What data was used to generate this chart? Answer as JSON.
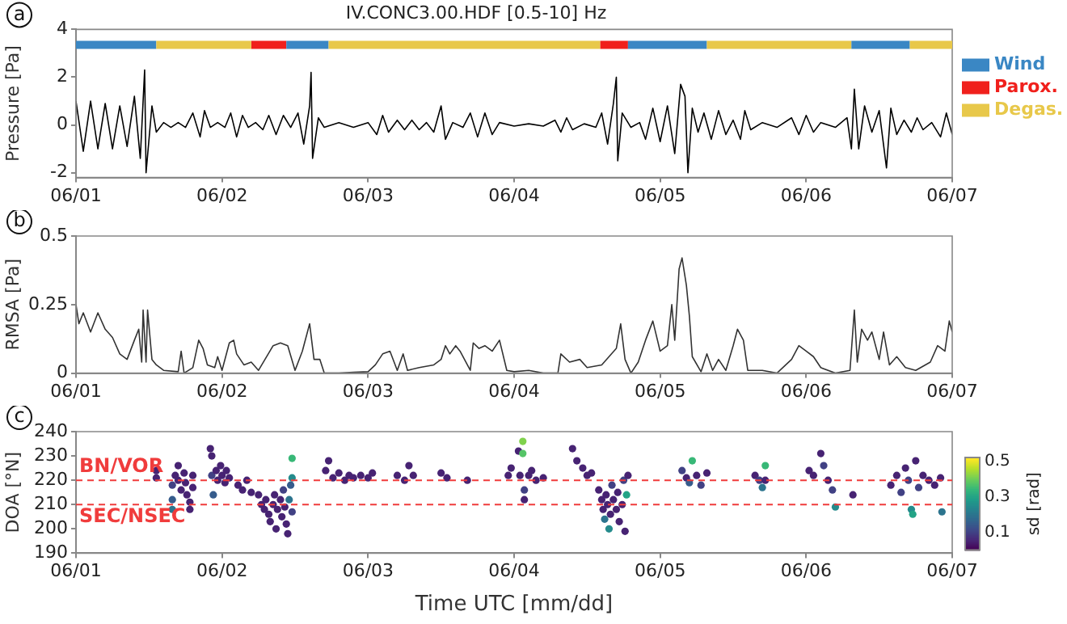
{
  "chart_data": [
    {
      "type": "line",
      "title": "IV.CONC3.00.HDF [0.5-10] Hz",
      "ylabel": "Pressure [Pa]",
      "annotations": [
        "a"
      ],
      "color": "#000000",
      "legend": "right",
      "marker": "none",
      "x": [
        "--06-01T00:00",
        "--06-01T01:12",
        "--06-01T02:24",
        "--06-01T03:36",
        "--06-01T04:48",
        "--06-01T06:00",
        "--06-01T07:12",
        "--06-01T08:24",
        "--06-01T09:36",
        "--06-01T10:34",
        "--06-01T11:17",
        "--06-01T11:31",
        "--06-01T12:29",
        "--06-01T13:12",
        "--06-01T14:24",
        "--06-01T15:36",
        "--06-01T16:48",
        "--06-01T18:00",
        "--06-01T19:12",
        "--06-01T20:24",
        "--06-01T21:07",
        "--06-01T22:05",
        "--06-01T23:17",
        "--06-02T00:29",
        "--06-02T01:26",
        "--06-02T02:24",
        "--06-02T03:22",
        "--06-02T04:19",
        "--06-02T05:31",
        "--06-02T06:43",
        "--06-02T07:41",
        "--06-02T08:53",
        "--06-02T10:05",
        "--06-02T11:17",
        "--06-02T12:29",
        "--06-02T13:26",
        "--06-02T14:24",
        "--06-02T14:38",
        "--06-02T14:53",
        "--06-02T15:50",
        "--06-02T16:48",
        "--06-02T19:12",
        "--06-02T21:36",
        "--06-03T00:00",
        "--06-03T01:26",
        "--06-03T02:24",
        "--06-03T03:22",
        "--06-03T04:48",
        "--06-03T06:00",
        "--06-03T07:12",
        "--06-03T08:24",
        "--06-03T09:36",
        "--06-03T10:48",
        "--06-03T12:00",
        "--06-03T12:43",
        "--06-03T13:55",
        "--06-03T15:36",
        "--06-03T16:48",
        "--06-03T18:00",
        "--06-03T19:12",
        "--06-03T20:24",
        "--06-03T21:36",
        "--06-04T00:00",
        "--06-04T02:24",
        "--06-04T04:48",
        "--06-04T06:43",
        "--06-04T07:41",
        "--06-04T08:38",
        "--06-04T09:36",
        "--06-04T11:31",
        "--06-04T13:26",
        "--06-04T14:24",
        "--06-04T15:22",
        "--06-04T16:19",
        "--06-04T16:48",
        "--06-04T17:02",
        "--06-04T17:46",
        "--06-04T19:12",
        "--06-04T20:38",
        "--06-04T21:36",
        "--06-04T22:48",
        "--06-05T00:00",
        "--06-05T01:12",
        "--06-05T02:24",
        "--06-05T03:22",
        "--06-05T04:05",
        "--06-05T04:34",
        "--06-05T05:17",
        "--06-05T06:14",
        "--06-05T07:12",
        "--06-05T08:24",
        "--06-05T09:36",
        "--06-05T10:48",
        "--06-05T12:00",
        "--06-05T13:12",
        "--06-05T13:55",
        "--06-05T14:53",
        "--06-05T16:48",
        "--06-05T19:12",
        "--06-05T21:36",
        "--06-05T22:48",
        "--06-06T00:00",
        "--06-06T01:12",
        "--06-06T02:24",
        "--06-06T04:48",
        "--06-06T06:43",
        "--06-06T07:26",
        "--06-06T07:55",
        "--06-06T08:38",
        "--06-06T09:36",
        "--06-06T10:48",
        "--06-06T12:00",
        "--06-06T13:12",
        "--06-06T13:55",
        "--06-06T14:53",
        "--06-06T16:05",
        "--06-06T17:17",
        "--06-06T18:14",
        "--06-06T19:12",
        "--06-06T20:38",
        "--06-06T22:05",
        "--06-06T23:02",
        "--06-07T00:00"
      ],
      "values": [
        1.0,
        -1.1,
        1.0,
        -1.0,
        0.9,
        -1.0,
        0.8,
        -0.9,
        1.2,
        -1.4,
        2.3,
        -2.0,
        0.8,
        -0.3,
        0.1,
        -0.1,
        0.1,
        -0.1,
        0.5,
        -0.5,
        0.6,
        -0.1,
        0.1,
        -0.1,
        0.5,
        -0.5,
        0.4,
        -0.1,
        0.1,
        -0.2,
        0.4,
        -0.4,
        0.4,
        -0.1,
        0.5,
        -0.8,
        0.8,
        2.2,
        -1.4,
        0.3,
        -0.1,
        0.1,
        -0.1,
        0.1,
        -0.4,
        0.4,
        -0.3,
        0.2,
        -0.2,
        0.2,
        -0.2,
        0.1,
        -0.3,
        0.8,
        -0.6,
        0.1,
        -0.1,
        0.5,
        -0.5,
        0.5,
        -0.4,
        0.1,
        -0.05,
        0.05,
        -0.05,
        0.2,
        -0.3,
        0.3,
        -0.2,
        0.05,
        -0.1,
        0.5,
        -0.8,
        0.9,
        2.0,
        -1.5,
        0.5,
        -0.1,
        0.1,
        -0.6,
        0.7,
        -0.7,
        0.8,
        -1.2,
        1.7,
        1.2,
        -2.0,
        0.7,
        -0.3,
        0.5,
        -0.6,
        0.6,
        -0.4,
        0.2,
        -0.6,
        0.6,
        -0.2,
        0.1,
        -0.1,
        0.3,
        -0.4,
        0.4,
        -0.3,
        0.1,
        -0.1,
        0.3,
        -1.0,
        1.5,
        -1.0,
        0.8,
        -0.3,
        0.6,
        -1.8,
        0.7,
        -0.4,
        0.2,
        -0.3,
        0.3,
        -0.2,
        0.1,
        -0.5,
        0.5,
        -0.4
      ],
      "xlim": [
        "--06-01",
        "--06-07"
      ],
      "xticks": [
        {
          "value": "--06-01",
          "label": "06/01"
        },
        {
          "value": "--06-02",
          "label": "06/02"
        },
        {
          "value": "--06-03",
          "label": "06/03"
        },
        {
          "value": "--06-04",
          "label": "06/04"
        },
        {
          "value": "--06-05",
          "label": "06/05"
        },
        {
          "value": "--06-06",
          "label": "06/06"
        },
        {
          "value": "--06-07",
          "label": "06/07"
        }
      ],
      "ylim": [
        -2.2,
        4
      ],
      "yticks": [
        -2,
        0,
        2,
        4
      ],
      "bands": [
        {
          "axis": "x",
          "from": "--06-01T00:00",
          "to": "--06-01T13:12",
          "label": "Wind",
          "color": "#3a87c4"
        },
        {
          "axis": "x",
          "from": "--06-02T04:48",
          "to": "--06-02T10:34",
          "label": "Parox.",
          "color": "#f0201c"
        },
        {
          "axis": "x",
          "from": "--06-01T13:12",
          "to": "--06-02T04:48",
          "label": "Degas.",
          "color": "#e8c84a"
        },
        {
          "axis": "x",
          "from": "--06-02T10:34",
          "to": "--06-02T17:31",
          "color": "#3a87c4"
        },
        {
          "axis": "x",
          "from": "--06-02T17:31",
          "to": "--06-04T14:10",
          "color": "#e8c84a"
        },
        {
          "axis": "x",
          "from": "--06-04T14:10",
          "to": "--06-04T18:43",
          "color": "#f0201c"
        },
        {
          "axis": "x",
          "from": "--06-04T18:43",
          "to": "--06-05T07:41",
          "color": "#3a87c4"
        },
        {
          "axis": "x",
          "from": "--06-05T07:41",
          "to": "--06-06T07:26",
          "color": "#e8c84a"
        },
        {
          "axis": "x",
          "from": "--06-06T07:26",
          "to": "--06-06T17:02",
          "color": "#3a87c4"
        },
        {
          "axis": "x",
          "from": "--06-06T17:02",
          "to": "--06-07T00:00",
          "color": "#e8c84a"
        }
      ]
    },
    {
      "type": "line",
      "ylabel": "RMSA [Pa]",
      "annotations": [
        "b"
      ],
      "color": "#333333",
      "marker": "none",
      "x": [
        "--06-01T00:00",
        "--06-01T00:29",
        "--06-01T01:12",
        "--06-01T02:24",
        "--06-01T03:36",
        "--06-01T04:48",
        "--06-01T06:00",
        "--06-01T07:12",
        "--06-01T08:24",
        "--06-01T09:36",
        "--06-01T10:19",
        "--06-01T10:48",
        "--06-01T11:02",
        "--06-01T11:31",
        "--06-01T11:46",
        "--06-01T12:29",
        "--06-01T13:12",
        "--06-01T14:24",
        "--06-01T16:48",
        "--06-01T17:17",
        "--06-01T17:46",
        "--06-01T19:12",
        "--06-01T20:10",
        "--06-01T20:53",
        "--06-01T21:36",
        "--06-01T22:48",
        "--06-01T23:17",
        "--06-02T00:00",
        "--06-02T01:12",
        "--06-02T01:55",
        "--06-02T02:24",
        "--06-02T03:36",
        "--06-02T04:48",
        "--06-02T06:00",
        "--06-02T08:24",
        "--06-02T09:36",
        "--06-02T10:48",
        "--06-02T12:00",
        "--06-02T13:12",
        "--06-02T14:24",
        "--06-02T15:07",
        "--06-02T16:05",
        "--06-02T16:48",
        "--06-02T19:12",
        "--06-02T21:36",
        "--06-03T00:00",
        "--06-03T01:12",
        "--06-03T02:24",
        "--06-03T03:36",
        "--06-03T04:48",
        "--06-03T05:46",
        "--06-03T06:29",
        "--06-03T08:24",
        "--06-03T10:48",
        "--06-03T12:00",
        "--06-03T12:43",
        "--06-03T13:26",
        "--06-03T14:24",
        "--06-03T15:07",
        "--06-03T16:48",
        "--06-03T17:17",
        "--06-03T18:14",
        "--06-03T19:12",
        "--06-03T20:24",
        "--06-03T21:36",
        "--06-03T22:48",
        "--06-04T00:00",
        "--06-04T02:24",
        "--06-04T04:48",
        "--06-04T07:12",
        "--06-04T07:41",
        "--06-04T09:07",
        "--06-04T10:48",
        "--06-04T12:00",
        "--06-04T14:24",
        "--06-04T16:48",
        "--06-04T17:31",
        "--06-04T18:14",
        "--06-04T19:12",
        "--06-04T20:24",
        "--06-04T21:36",
        "--06-04T22:48",
        "--06-05T00:00",
        "--06-05T01:12",
        "--06-05T01:55",
        "--06-05T02:24",
        "--06-05T03:07",
        "--06-05T03:36",
        "--06-05T04:19",
        "--06-05T04:48",
        "--06-05T05:17",
        "--06-05T06:43",
        "--06-05T07:41",
        "--06-05T08:38",
        "--06-05T09:36",
        "--06-05T10:48",
        "--06-05T12:00",
        "--06-05T12:43",
        "--06-05T13:41",
        "--06-05T14:24",
        "--06-05T16:48",
        "--06-05T19:12",
        "--06-05T21:36",
        "--06-05T22:48",
        "--06-06T00:00",
        "--06-06T01:12",
        "--06-06T02:24",
        "--06-06T04:48",
        "--06-06T07:12",
        "--06-06T07:55",
        "--06-06T08:24",
        "--06-06T09:07",
        "--06-06T10:05",
        "--06-06T10:48",
        "--06-06T12:00",
        "--06-06T12:43",
        "--06-06T13:41",
        "--06-06T14:53",
        "--06-06T16:19",
        "--06-06T18:00",
        "--06-06T20:24",
        "--06-06T21:36",
        "--06-06T22:48",
        "--06-06T23:31",
        "--06-07T00:00"
      ],
      "values": [
        0.25,
        0.18,
        0.22,
        0.15,
        0.22,
        0.16,
        0.13,
        0.07,
        0.05,
        0.12,
        0.16,
        0.04,
        0.23,
        0.04,
        0.23,
        0.05,
        0.03,
        0.01,
        0.005,
        0.08,
        0,
        0.02,
        0.12,
        0.09,
        0.03,
        0.02,
        0.06,
        0.01,
        0.11,
        0.12,
        0.07,
        0.03,
        0.04,
        0.01,
        0.1,
        0.11,
        0.1,
        0.01,
        0.08,
        0.18,
        0.05,
        0.05,
        0,
        0,
        0.003,
        0.005,
        0.03,
        0.07,
        0.08,
        0.01,
        0.07,
        0.01,
        0.02,
        0.03,
        0.05,
        0.1,
        0.07,
        0.1,
        0.08,
        0.01,
        0.11,
        0.09,
        0.1,
        0.08,
        0.12,
        0.01,
        0.005,
        0.01,
        0,
        0,
        0.07,
        0.04,
        0.05,
        0.02,
        0.03,
        0.09,
        0.18,
        0.05,
        0,
        0.04,
        0.12,
        0.19,
        0.08,
        0.1,
        0.25,
        0.12,
        0.38,
        0.42,
        0.32,
        0.21,
        0.06,
        0.005,
        0.07,
        0.01,
        0.05,
        0.01,
        0.1,
        0.16,
        0.12,
        0.01,
        0.01,
        0,
        0.05,
        0.1,
        0.08,
        0.06,
        0.02,
        0,
        0.01,
        0.23,
        0.04,
        0.16,
        0.12,
        0.15,
        0.05,
        0.15,
        0.03,
        0.06,
        0.02,
        0.01,
        0.04,
        0.1,
        0.08,
        0.19,
        0.15
      ],
      "xlim": [
        "--06-01",
        "--06-07"
      ],
      "xticks": [
        {
          "value": "--06-01",
          "label": "06/01"
        },
        {
          "value": "--06-02",
          "label": "06/02"
        },
        {
          "value": "--06-03",
          "label": "06/03"
        },
        {
          "value": "--06-04",
          "label": "06/04"
        },
        {
          "value": "--06-05",
          "label": "06/05"
        },
        {
          "value": "--06-06",
          "label": "06/06"
        },
        {
          "value": "--06-07",
          "label": "06/07"
        }
      ],
      "ylim": [
        0,
        0.5
      ],
      "yticks": [
        0,
        0.25,
        0.5
      ]
    },
    {
      "type": "scatter",
      "xlabel": "Time UTC [mm/dd]",
      "ylabel": "DOA [°N]",
      "clabel": "sd [rad]",
      "annotations": [
        "c"
      ],
      "marker": "circle",
      "x": [
        "--06-01T13:12",
        "--06-01T13:12",
        "--06-01T15:50",
        "--06-01T15:50",
        "--06-01T15:50",
        "--06-01T16:19",
        "--06-01T16:48",
        "--06-01T16:48",
        "--06-01T17:17",
        "--06-01T17:46",
        "--06-01T18:00",
        "--06-01T18:14",
        "--06-01T18:43",
        "--06-01T18:43",
        "--06-01T19:12",
        "--06-01T19:12",
        "--06-01T22:05",
        "--06-01T22:19",
        "--06-01T22:19",
        "--06-01T22:34",
        "--06-01T23:02",
        "--06-01T23:17",
        "--06-01T23:46",
        "--06-02T00:00",
        "--06-02T00:29",
        "--06-02T00:43",
        "--06-02T01:12",
        "--06-02T02:38",
        "--06-02T03:22",
        "--06-02T04:05",
        "--06-02T04:48",
        "--06-02T06:00",
        "--06-02T06:29",
        "--06-02T06:58",
        "--06-02T07:12",
        "--06-02T07:41",
        "--06-02T07:55",
        "--06-02T08:24",
        "--06-02T08:38",
        "--06-02T08:53",
        "--06-02T09:07",
        "--06-02T09:36",
        "--06-02T09:50",
        "--06-02T10:05",
        "--06-02T10:19",
        "--06-02T10:34",
        "--06-02T10:48",
        "--06-02T11:02",
        "--06-02T11:17",
        "--06-02T11:31",
        "--06-02T11:31",
        "--06-02T11:31",
        "--06-02T17:02",
        "--06-02T17:31",
        "--06-02T18:14",
        "--06-02T19:12",
        "--06-02T20:10",
        "--06-02T20:53",
        "--06-02T21:36",
        "--06-02T22:48",
        "--06-03T00:00",
        "--06-03T00:43",
        "--06-03T04:48",
        "--06-03T06:00",
        "--06-03T06:43",
        "--06-03T07:26",
        "--06-03T12:00",
        "--06-03T12:58",
        "--06-03T16:19",
        "--06-03T23:02",
        "--06-03T23:31",
        "--06-04T00:43",
        "--06-04T00:58",
        "--06-04T01:26",
        "--06-04T01:26",
        "--06-04T01:41",
        "--06-04T01:41",
        "--06-04T02:24",
        "--06-04T02:53",
        "--06-04T03:36",
        "--06-04T04:48",
        "--06-04T09:36",
        "--06-04T10:19",
        "--06-04T11:17",
        "--06-04T12:00",
        "--06-04T12:43",
        "--06-04T13:55",
        "--06-04T14:24",
        "--06-04T14:38",
        "--06-04T14:53",
        "--06-04T15:07",
        "--06-04T15:22",
        "--06-04T15:36",
        "--06-04T15:50",
        "--06-04T16:05",
        "--06-04T16:19",
        "--06-04T16:48",
        "--06-04T17:02",
        "--06-04T17:17",
        "--06-04T17:46",
        "--06-04T18:00",
        "--06-04T18:14",
        "--06-04T18:29",
        "--06-04T18:43",
        "--06-05T03:36",
        "--06-05T04:19",
        "--06-05T04:48",
        "--06-05T05:17",
        "--06-05T06:00",
        "--06-05T06:43",
        "--06-05T07:41",
        "--06-05T15:36",
        "--06-05T16:19",
        "--06-05T16:48",
        "--06-05T17:17",
        "--06-05T17:17",
        "--06-06T00:29",
        "--06-06T01:12",
        "--06-06T02:24",
        "--06-06T02:53",
        "--06-06T03:36",
        "--06-06T04:19",
        "--06-06T04:48",
        "--06-06T07:41",
        "--06-06T13:55",
        "--06-06T14:53",
        "--06-06T15:36",
        "--06-06T16:19",
        "--06-06T16:48",
        "--06-06T17:17",
        "--06-06T17:31",
        "--06-06T18:00",
        "--06-06T18:29",
        "--06-06T19:12",
        "--06-06T20:10",
        "--06-06T21:07",
        "--06-06T22:05",
        "--06-06T22:19"
      ],
      "values": [
        224,
        221,
        218,
        212,
        208,
        222,
        226,
        220,
        216,
        223,
        219,
        214,
        211,
        208,
        222,
        217,
        233,
        230,
        222,
        214,
        224,
        220,
        226,
        222,
        219,
        224,
        221,
        218,
        216,
        220,
        215,
        214,
        210,
        208,
        212,
        206,
        203,
        210,
        214,
        200,
        208,
        212,
        205,
        216,
        209,
        202,
        198,
        212,
        218,
        229,
        221,
        207,
        224,
        228,
        221,
        223,
        220,
        222,
        221,
        222,
        221,
        223,
        222,
        220,
        226,
        222,
        223,
        221,
        220,
        222,
        225,
        232,
        222,
        236,
        231,
        216,
        212,
        222,
        224,
        220,
        221,
        233,
        228,
        225,
        222,
        223,
        216,
        212,
        208,
        204,
        214,
        210,
        200,
        206,
        218,
        212,
        208,
        215,
        203,
        210,
        220,
        199,
        214,
        222,
        224,
        221,
        219,
        228,
        222,
        218,
        223,
        222,
        220,
        217,
        226,
        220,
        224,
        222,
        231,
        226,
        220,
        216,
        209,
        214,
        218,
        222,
        215,
        225,
        220,
        208,
        206,
        228,
        217,
        222,
        220,
        218,
        221,
        207
      ],
      "cvalues": [
        0.05,
        0.05,
        0.1,
        0.15,
        0.2,
        0.05,
        0.05,
        0.05,
        0.05,
        0.05,
        0.05,
        0.05,
        0.05,
        0.05,
        0.05,
        0.05,
        0.05,
        0.05,
        0.1,
        0.15,
        0.05,
        0.05,
        0.05,
        0.05,
        0.05,
        0.05,
        0.05,
        0.05,
        0.05,
        0.05,
        0.05,
        0.05,
        0.05,
        0.05,
        0.05,
        0.05,
        0.05,
        0.05,
        0.05,
        0.05,
        0.05,
        0.05,
        0.05,
        0.1,
        0.05,
        0.05,
        0.05,
        0.2,
        0.15,
        0.35,
        0.25,
        0.1,
        0.05,
        0.05,
        0.05,
        0.05,
        0.05,
        0.05,
        0.05,
        0.05,
        0.05,
        0.05,
        0.05,
        0.05,
        0.05,
        0.05,
        0.05,
        0.05,
        0.05,
        0.05,
        0.05,
        0.05,
        0.05,
        0.42,
        0.38,
        0.1,
        0.05,
        0.05,
        0.05,
        0.05,
        0.05,
        0.05,
        0.05,
        0.05,
        0.05,
        0.05,
        0.05,
        0.05,
        0.05,
        0.2,
        0.05,
        0.05,
        0.25,
        0.05,
        0.1,
        0.05,
        0.05,
        0.05,
        0.05,
        0.05,
        0.1,
        0.05,
        0.3,
        0.05,
        0.1,
        0.05,
        0.15,
        0.35,
        0.05,
        0.1,
        0.05,
        0.05,
        0.1,
        0.2,
        0.35,
        0.05,
        0.05,
        0.05,
        0.05,
        0.1,
        0.05,
        0.1,
        0.25,
        0.05,
        0.05,
        0.05,
        0.1,
        0.05,
        0.1,
        0.25,
        0.3,
        0.05,
        0.1,
        0.05,
        0.05,
        0.05,
        0.05,
        0.2
      ],
      "clim": [
        0,
        0.52
      ],
      "cticks": [
        0.1,
        0.3,
        0.5
      ],
      "xlim": [
        "--06-01",
        "--06-07"
      ],
      "xticks": [
        {
          "value": "--06-01",
          "label": "06/01"
        },
        {
          "value": "--06-02",
          "label": "06/02"
        },
        {
          "value": "--06-03",
          "label": "06/03"
        },
        {
          "value": "--06-04",
          "label": "06/04"
        },
        {
          "value": "--06-05",
          "label": "06/05"
        },
        {
          "value": "--06-06",
          "label": "06/06"
        },
        {
          "value": "--06-07",
          "label": "06/07"
        }
      ],
      "ylim": [
        190,
        240
      ],
      "yticks": [
        190,
        200,
        210,
        220,
        230,
        240
      ],
      "ref_lines": [
        {
          "axis": "y",
          "value": 220,
          "label": "BN/VOR",
          "color": "#f03c3c",
          "line_style": "dashed"
        },
        {
          "axis": "y",
          "value": 210,
          "label": "SEC/NSEC",
          "color": "#f03c3c",
          "line_style": "dashed"
        }
      ]
    }
  ]
}
